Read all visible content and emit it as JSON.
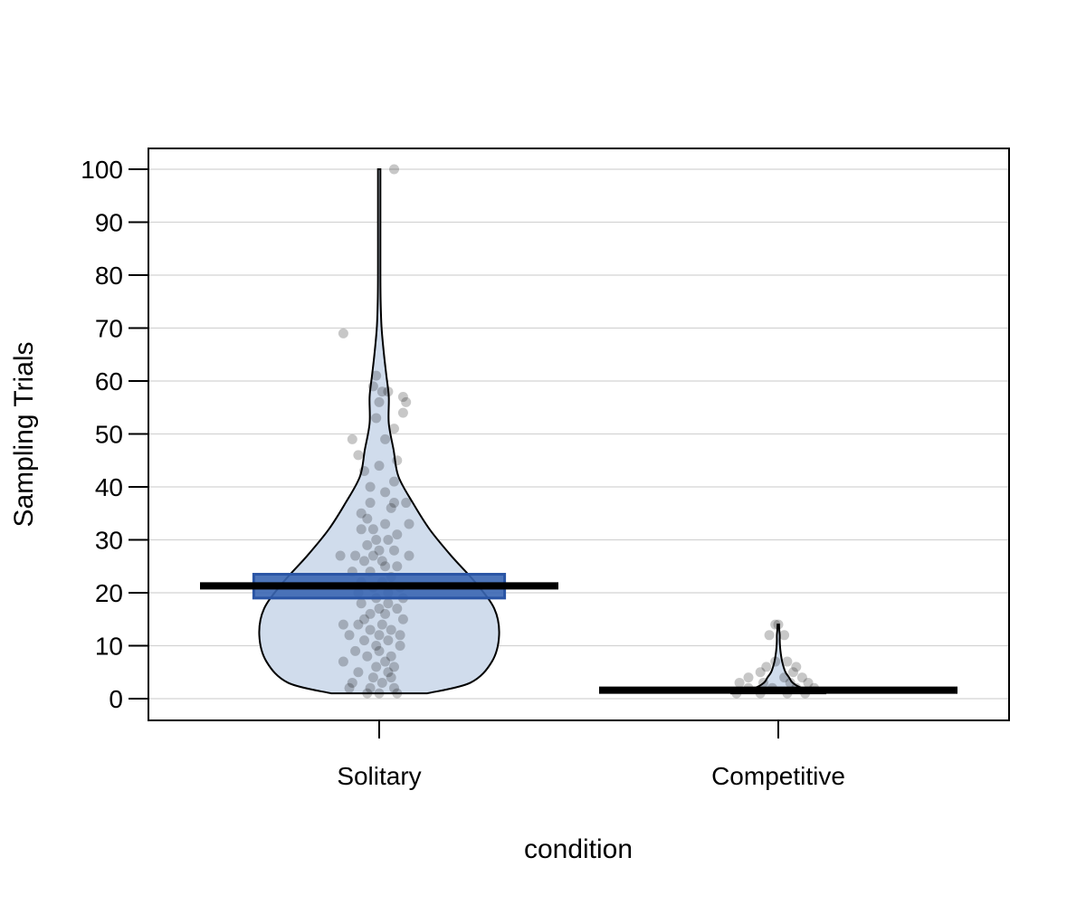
{
  "chart_data": {
    "type": "violin",
    "title": "",
    "xlabel": "condition",
    "ylabel": "Sampling Trials",
    "ylim": [
      -4,
      104
    ],
    "yticks": [
      0,
      10,
      20,
      30,
      40,
      50,
      60,
      70,
      80,
      90,
      100
    ],
    "grid": "horizontal",
    "legend": "none",
    "categories": [
      "Solitary",
      "Competitive"
    ],
    "series": [
      {
        "category": "Solitary",
        "mean": 21.3,
        "ci": [
          19.0,
          23.5
        ],
        "min": 1,
        "max": 100,
        "fill_color": "#d0dcec",
        "ci_color": "#3a66b3",
        "density": [
          [
            1,
            0.2
          ],
          [
            3,
            0.38
          ],
          [
            7,
            0.47
          ],
          [
            12,
            0.5
          ],
          [
            17,
            0.48
          ],
          [
            22,
            0.4
          ],
          [
            27,
            0.3
          ],
          [
            32,
            0.21
          ],
          [
            37,
            0.14
          ],
          [
            42,
            0.08
          ],
          [
            47,
            0.06
          ],
          [
            52,
            0.04
          ],
          [
            57,
            0.04
          ],
          [
            61,
            0.03
          ],
          [
            65,
            0.02
          ],
          [
            70,
            0.01
          ],
          [
            75,
            0.006
          ],
          [
            80,
            0.005
          ],
          [
            90,
            0.005
          ],
          [
            100,
            0.005
          ]
        ],
        "points": [
          [
            100,
            0.05
          ],
          [
            69,
            -0.12
          ],
          [
            61,
            -0.01
          ],
          [
            59,
            -0.02
          ],
          [
            58,
            0.01
          ],
          [
            58,
            0.03
          ],
          [
            57,
            0.08
          ],
          [
            56,
            0.09
          ],
          [
            56,
            0.0
          ],
          [
            54,
            0.08
          ],
          [
            53,
            -0.01
          ],
          [
            51,
            0.05
          ],
          [
            49,
            -0.09
          ],
          [
            49,
            0.02
          ],
          [
            46,
            -0.07
          ],
          [
            45,
            0.06
          ],
          [
            44,
            0.0
          ],
          [
            43,
            -0.05
          ],
          [
            41,
            0.05
          ],
          [
            40,
            -0.03
          ],
          [
            39,
            0.02
          ],
          [
            37,
            -0.03
          ],
          [
            37,
            0.05
          ],
          [
            37,
            0.09
          ],
          [
            36,
            0.04
          ],
          [
            35,
            -0.06
          ],
          [
            34,
            -0.04
          ],
          [
            33,
            0.02
          ],
          [
            33,
            0.1
          ],
          [
            32,
            -0.06
          ],
          [
            32,
            -0.02
          ],
          [
            31,
            0.06
          ],
          [
            30,
            -0.01
          ],
          [
            30,
            0.03
          ],
          [
            29,
            -0.04
          ],
          [
            28,
            0.0
          ],
          [
            28,
            0.05
          ],
          [
            27,
            -0.13
          ],
          [
            27,
            -0.08
          ],
          [
            27,
            -0.02
          ],
          [
            27,
            0.1
          ],
          [
            26,
            0.01
          ],
          [
            26,
            -0.05
          ],
          [
            25,
            0.06
          ],
          [
            25,
            0.02
          ],
          [
            24,
            -0.09
          ],
          [
            24,
            -0.03
          ],
          [
            23,
            0.04
          ],
          [
            22,
            -0.06
          ],
          [
            22,
            0.01
          ],
          [
            21,
            0.07
          ],
          [
            21,
            -0.02
          ],
          [
            20,
            0.03
          ],
          [
            20,
            -0.07
          ],
          [
            19,
            0.08
          ],
          [
            19,
            -0.01
          ],
          [
            18,
            0.03
          ],
          [
            18,
            -0.06
          ],
          [
            17,
            0.0
          ],
          [
            17,
            0.06
          ],
          [
            16,
            -0.03
          ],
          [
            16,
            0.02
          ],
          [
            15,
            -0.05
          ],
          [
            15,
            0.08
          ],
          [
            14,
            -0.12
          ],
          [
            14,
            -0.07
          ],
          [
            14,
            0.01
          ],
          [
            13,
            -0.03
          ],
          [
            13,
            0.04
          ],
          [
            12,
            -0.1
          ],
          [
            12,
            0.0
          ],
          [
            12,
            0.07
          ],
          [
            11,
            -0.05
          ],
          [
            11,
            0.03
          ],
          [
            10,
            -0.01
          ],
          [
            10,
            0.07
          ],
          [
            9,
            -0.08
          ],
          [
            9,
            0.0
          ],
          [
            8,
            0.04
          ],
          [
            8,
            -0.04
          ],
          [
            7,
            -0.12
          ],
          [
            7,
            0.02
          ],
          [
            6,
            -0.01
          ],
          [
            6,
            0.05
          ],
          [
            5,
            -0.07
          ],
          [
            5,
            0.03
          ],
          [
            4,
            -0.02
          ],
          [
            4,
            0.04
          ],
          [
            3,
            -0.09
          ],
          [
            3,
            0.01
          ],
          [
            2,
            -0.1
          ],
          [
            2,
            -0.03
          ],
          [
            2,
            0.05
          ],
          [
            1,
            -0.04
          ],
          [
            1,
            0.0
          ],
          [
            1,
            0.06
          ]
        ]
      },
      {
        "category": "Competitive",
        "mean": 1.6,
        "ci": [
          1.4,
          1.8
        ],
        "min": 1,
        "max": 14,
        "fill_color": "#d0dcec",
        "ci_color": "#3a66b3",
        "density": [
          [
            1,
            0.2
          ],
          [
            2,
            0.1
          ],
          [
            3,
            0.06
          ],
          [
            4,
            0.045
          ],
          [
            5,
            0.03
          ],
          [
            6,
            0.022
          ],
          [
            7,
            0.016
          ],
          [
            8,
            0.012
          ],
          [
            9,
            0.009
          ],
          [
            10,
            0.007
          ],
          [
            11,
            0.006
          ],
          [
            12,
            0.006
          ],
          [
            13,
            0.004
          ],
          [
            14,
            0.003
          ]
        ],
        "points": [
          [
            14,
            -0.01
          ],
          [
            14,
            0.0
          ],
          [
            12,
            -0.03
          ],
          [
            12,
            0.02
          ],
          [
            7,
            -0.01
          ],
          [
            7,
            0.03
          ],
          [
            6,
            -0.04
          ],
          [
            6,
            0.06
          ],
          [
            5,
            0.05
          ],
          [
            5,
            -0.06
          ],
          [
            4,
            -0.1
          ],
          [
            4,
            0.02
          ],
          [
            4,
            0.08
          ],
          [
            3,
            -0.13
          ],
          [
            3,
            -0.05
          ],
          [
            3,
            0.04
          ],
          [
            3,
            0.1
          ],
          [
            2,
            -0.1
          ],
          [
            2,
            -0.02
          ],
          [
            2,
            0.06
          ],
          [
            2,
            0.12
          ],
          [
            1,
            -0.14
          ],
          [
            1,
            -0.06
          ],
          [
            1,
            0.03
          ],
          [
            1,
            0.09
          ]
        ]
      }
    ]
  }
}
